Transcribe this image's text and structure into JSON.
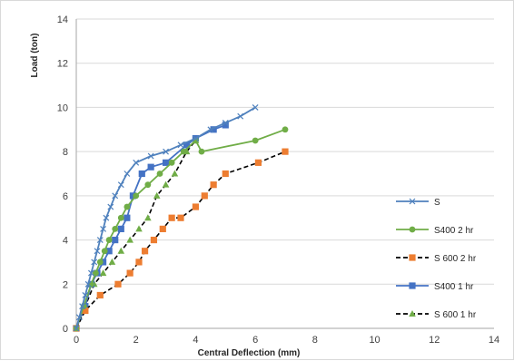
{
  "chart_data": {
    "type": "line",
    "xlabel": "Central Deflection (mm)",
    "ylabel": "Load (ton)",
    "xlim": [
      0,
      14
    ],
    "ylim": [
      0,
      14
    ],
    "xticks": [
      0,
      2,
      4,
      6,
      8,
      10,
      12,
      14
    ],
    "yticks": [
      0,
      2,
      4,
      6,
      8,
      10,
      12,
      14
    ],
    "grid": "horizontal",
    "legend_position": "right",
    "series": [
      {
        "name": "S",
        "color": "#4f81bd",
        "dash": "solid",
        "marker": "x",
        "x": [
          0,
          0.1,
          0.2,
          0.3,
          0.4,
          0.5,
          0.6,
          0.7,
          0.8,
          0.9,
          1.0,
          1.15,
          1.3,
          1.5,
          1.7,
          2.0,
          2.5,
          3.0,
          3.5,
          4.0,
          4.5,
          5.0,
          5.5,
          6.0
        ],
        "y": [
          0,
          0.5,
          1.0,
          1.5,
          2.0,
          2.5,
          3.0,
          3.5,
          4.0,
          4.5,
          5.0,
          5.5,
          6.0,
          6.5,
          7.0,
          7.5,
          7.8,
          8.0,
          8.3,
          8.6,
          9.0,
          9.3,
          9.6,
          10.0
        ]
      },
      {
        "name": "S400 2 hr",
        "color": "#70ad47",
        "dash": "solid",
        "marker": "circle",
        "x": [
          0,
          0.25,
          0.5,
          0.65,
          0.8,
          0.95,
          1.1,
          1.3,
          1.5,
          1.7,
          2.0,
          2.4,
          2.8,
          3.2,
          3.6,
          4.0,
          4.2,
          6.0,
          7.0
        ],
        "y": [
          0,
          1.0,
          2.0,
          2.5,
          3.0,
          3.5,
          4.0,
          4.5,
          5.0,
          5.5,
          6.0,
          6.5,
          7.0,
          7.5,
          8.0,
          8.5,
          8.0,
          8.5,
          9.0
        ]
      },
      {
        "name": "S 600 2 hr",
        "color": "#ed7d31",
        "dash": "dashed",
        "marker": "square",
        "x": [
          0,
          0.3,
          0.8,
          1.4,
          1.8,
          2.1,
          2.3,
          2.6,
          2.9,
          3.2,
          3.5,
          4.0,
          4.3,
          4.6,
          5.0,
          6.1,
          7.0
        ],
        "y": [
          0,
          0.8,
          1.5,
          2.0,
          2.5,
          3.0,
          3.5,
          4.0,
          4.5,
          5.0,
          5.0,
          5.5,
          6.0,
          6.5,
          7.0,
          7.5,
          8.0
        ]
      },
      {
        "name": "S400 1 hr",
        "color": "#4472c4",
        "dash": "solid",
        "marker": "square",
        "x": [
          0,
          0.3,
          0.5,
          0.7,
          0.9,
          1.1,
          1.3,
          1.5,
          1.7,
          1.9,
          2.2,
          2.5,
          3.0,
          3.7,
          4.0,
          4.6,
          5.0
        ],
        "y": [
          0,
          1.0,
          2.0,
          2.5,
          3.0,
          3.5,
          4.0,
          4.5,
          5.0,
          6.0,
          7.0,
          7.3,
          7.5,
          8.3,
          8.6,
          9.0,
          9.2
        ]
      },
      {
        "name": "S 600 1 hr",
        "color": "#70ad47",
        "dash": "dashed",
        "marker": "triangle",
        "x": [
          0,
          0.3,
          0.6,
          0.9,
          1.2,
          1.5,
          1.8,
          2.1,
          2.4,
          2.7,
          3.0,
          3.3,
          3.7,
          4.0
        ],
        "y": [
          0,
          1.0,
          2.0,
          2.5,
          3.0,
          3.5,
          4.0,
          4.5,
          5.0,
          6.0,
          6.5,
          7.0,
          8.0,
          8.5
        ]
      }
    ]
  }
}
